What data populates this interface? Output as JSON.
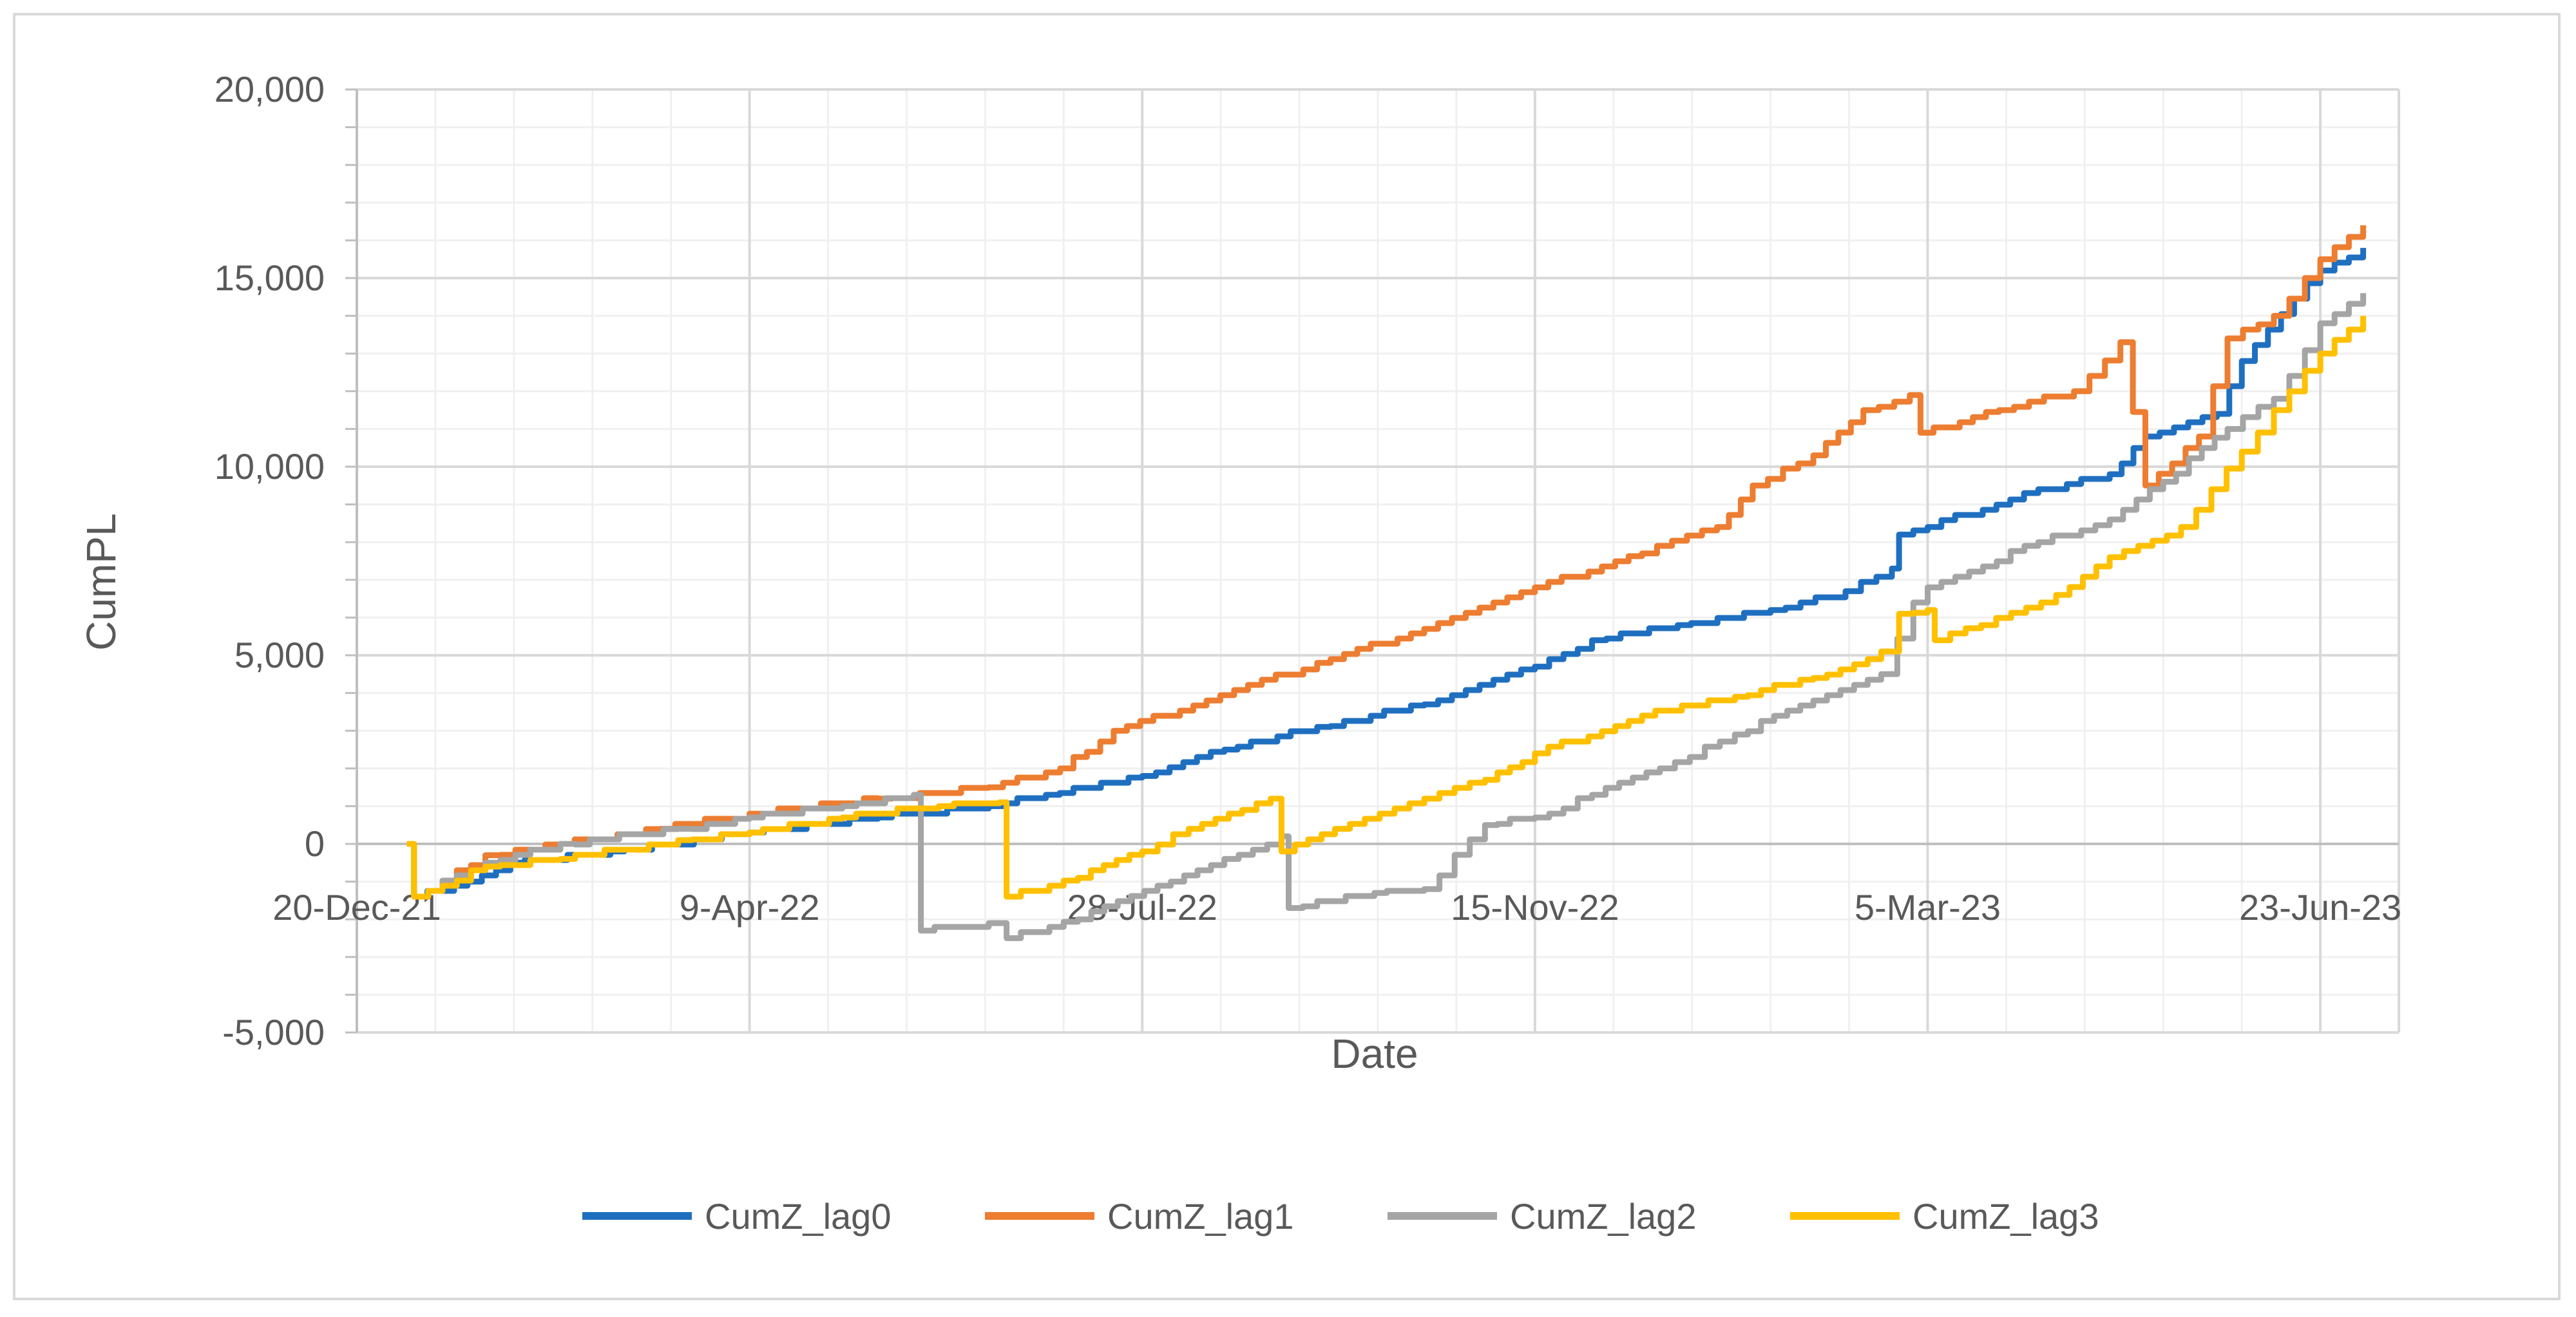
{
  "chart_data": {
    "type": "line",
    "title": "",
    "xlabel": "Date",
    "ylabel": "CumPL",
    "x_axis": {
      "type": "date",
      "range": [
        "2021-12-20",
        "2023-07-15"
      ],
      "ticks": [
        {
          "date": "2021-12-20",
          "label": "20-Dec-21"
        },
        {
          "date": "2022-04-09",
          "label": "9-Apr-22"
        },
        {
          "date": "2022-07-28",
          "label": "28-Jul-22"
        },
        {
          "date": "2022-11-15",
          "label": "15-Nov-22"
        },
        {
          "date": "2023-03-05",
          "label": "5-Mar-23"
        },
        {
          "date": "2023-06-23",
          "label": "23-Jun-23"
        }
      ]
    },
    "y_axis": {
      "range": [
        -5000,
        20000
      ],
      "ticks": [
        {
          "value": -5000,
          "label": "-5,000"
        },
        {
          "value": 0,
          "label": "0"
        },
        {
          "value": 5000,
          "label": "5,000"
        },
        {
          "value": 10000,
          "label": "10,000"
        },
        {
          "value": 15000,
          "label": "15,000"
        },
        {
          "value": 20000,
          "label": "20,000"
        }
      ]
    },
    "grid": true,
    "legend_position": "bottom",
    "series": [
      {
        "name": "CumZ_lag0",
        "color": "#1f6fc0",
        "points": [
          [
            "2022-01-03",
            0
          ],
          [
            "2022-01-05",
            -1400
          ],
          [
            "2022-01-20",
            -1000
          ],
          [
            "2022-02-01",
            -500
          ],
          [
            "2022-03-01",
            -200
          ],
          [
            "2022-04-09",
            300
          ],
          [
            "2022-05-15",
            700
          ],
          [
            "2022-06-15",
            1000
          ],
          [
            "2022-07-01",
            1300
          ],
          [
            "2022-07-28",
            1800
          ],
          [
            "2022-08-20",
            2500
          ],
          [
            "2022-09-15",
            3100
          ],
          [
            "2022-10-15",
            3700
          ],
          [
            "2022-11-15",
            4700
          ],
          [
            "2022-12-01",
            5400
          ],
          [
            "2022-12-25",
            5800
          ],
          [
            "2023-01-20",
            6200
          ],
          [
            "2023-02-10",
            6700
          ],
          [
            "2023-02-23",
            7300
          ],
          [
            "2023-02-25",
            8200
          ],
          [
            "2023-03-05",
            8400
          ],
          [
            "2023-04-01",
            9300
          ],
          [
            "2023-04-25",
            9800
          ],
          [
            "2023-05-05",
            10800
          ],
          [
            "2023-05-25",
            11400
          ],
          [
            "2023-06-01",
            12800
          ],
          [
            "2023-06-23",
            15200
          ],
          [
            "2023-07-05",
            15800
          ]
        ]
      },
      {
        "name": "CumZ_lag1",
        "color": "#ed7d31",
        "points": [
          [
            "2022-01-03",
            0
          ],
          [
            "2022-01-05",
            -1400
          ],
          [
            "2022-01-25",
            -300
          ],
          [
            "2022-02-15",
            0
          ],
          [
            "2022-03-15",
            400
          ],
          [
            "2022-04-09",
            800
          ],
          [
            "2022-05-15",
            1200
          ],
          [
            "2022-06-15",
            1500
          ],
          [
            "2022-07-05",
            2000
          ],
          [
            "2022-07-20",
            3000
          ],
          [
            "2022-08-15",
            3800
          ],
          [
            "2022-09-15",
            4800
          ],
          [
            "2022-10-15",
            5700
          ],
          [
            "2022-11-15",
            6800
          ],
          [
            "2022-12-15",
            7700
          ],
          [
            "2023-01-05",
            8400
          ],
          [
            "2023-01-15",
            9500
          ],
          [
            "2023-02-01",
            10300
          ],
          [
            "2023-02-15",
            11500
          ],
          [
            "2023-02-28",
            11900
          ],
          [
            "2023-03-03",
            10900
          ],
          [
            "2023-03-25",
            11500
          ],
          [
            "2023-04-15",
            12000
          ],
          [
            "2023-04-28",
            13300
          ],
          [
            "2023-05-05",
            9500
          ],
          [
            "2023-05-20",
            10800
          ],
          [
            "2023-05-28",
            13400
          ],
          [
            "2023-06-10",
            14000
          ],
          [
            "2023-06-23",
            15500
          ],
          [
            "2023-07-05",
            16400
          ]
        ]
      },
      {
        "name": "CumZ_lag2",
        "color": "#a5a5a5",
        "points": [
          [
            "2022-01-03",
            0
          ],
          [
            "2022-01-05",
            -1400
          ],
          [
            "2022-01-25",
            -500
          ],
          [
            "2022-02-15",
            0
          ],
          [
            "2022-03-20",
            400
          ],
          [
            "2022-04-09",
            700
          ],
          [
            "2022-05-05",
            1000
          ],
          [
            "2022-05-25",
            1300
          ],
          [
            "2022-05-27",
            -2300
          ],
          [
            "2022-06-15",
            -2100
          ],
          [
            "2022-06-20",
            -2500
          ],
          [
            "2022-07-10",
            -2000
          ],
          [
            "2022-08-05",
            -1000
          ],
          [
            "2022-08-20",
            -400
          ],
          [
            "2022-09-05",
            200
          ],
          [
            "2022-09-07",
            -1700
          ],
          [
            "2022-10-01",
            -1300
          ],
          [
            "2022-10-15",
            -1200
          ],
          [
            "2022-11-01",
            500
          ],
          [
            "2022-11-15",
            700
          ],
          [
            "2022-12-01",
            1300
          ],
          [
            "2022-12-20",
            2000
          ],
          [
            "2023-01-10",
            2900
          ],
          [
            "2023-02-01",
            3800
          ],
          [
            "2023-02-20",
            4500
          ],
          [
            "2023-03-01",
            6400
          ],
          [
            "2023-03-05",
            6800
          ],
          [
            "2023-04-05",
            8000
          ],
          [
            "2023-04-25",
            8600
          ],
          [
            "2023-05-10",
            9600
          ],
          [
            "2023-05-28",
            11000
          ],
          [
            "2023-06-10",
            11800
          ],
          [
            "2023-06-23",
            13800
          ],
          [
            "2023-07-05",
            14600
          ]
        ]
      },
      {
        "name": "CumZ_lag3",
        "color": "#ffc000",
        "points": [
          [
            "2022-01-03",
            0
          ],
          [
            "2022-01-05",
            -1400
          ],
          [
            "2022-01-25",
            -600
          ],
          [
            "2022-02-15",
            -400
          ],
          [
            "2022-03-20",
            100
          ],
          [
            "2022-04-09",
            300
          ],
          [
            "2022-05-05",
            700
          ],
          [
            "2022-06-01",
            1000
          ],
          [
            "2022-06-18",
            1100
          ],
          [
            "2022-06-20",
            -1400
          ],
          [
            "2022-07-10",
            -900
          ],
          [
            "2022-07-28",
            -200
          ],
          [
            "2022-08-10",
            400
          ],
          [
            "2022-08-25",
            900
          ],
          [
            "2022-09-02",
            1200
          ],
          [
            "2022-09-05",
            -200
          ],
          [
            "2022-09-20",
            400
          ],
          [
            "2022-10-15",
            1200
          ],
          [
            "2022-11-01",
            1700
          ],
          [
            "2022-11-15",
            2400
          ],
          [
            "2022-12-15",
            3400
          ],
          [
            "2023-01-10",
            3900
          ],
          [
            "2023-02-01",
            4400
          ],
          [
            "2023-02-20",
            5100
          ],
          [
            "2023-02-25",
            6100
          ],
          [
            "2023-03-05",
            6200
          ],
          [
            "2023-03-07",
            5400
          ],
          [
            "2023-03-20",
            5800
          ],
          [
            "2023-04-10",
            6600
          ],
          [
            "2023-04-25",
            7600
          ],
          [
            "2023-05-15",
            8400
          ],
          [
            "2023-06-01",
            10400
          ],
          [
            "2023-06-10",
            11500
          ],
          [
            "2023-06-23",
            13000
          ],
          [
            "2023-07-05",
            14000
          ]
        ]
      }
    ]
  }
}
